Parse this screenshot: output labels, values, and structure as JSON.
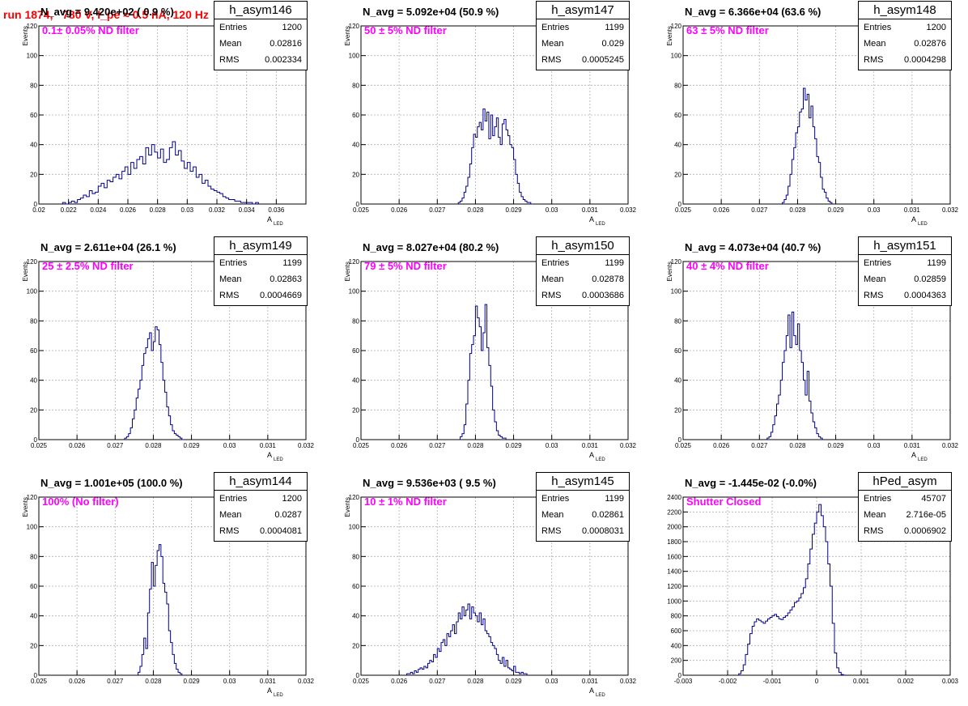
{
  "run_title": "run 1874,   780 V, I_pe ≈ 0.5 nA, 120 Hz",
  "colors": {
    "hist": "#00008b",
    "title": "#ff0000",
    "filter": "#ff00ff",
    "grid": "#b0b0b0"
  },
  "chart_data": [
    {
      "type": "bar",
      "histogram": "h_asym146",
      "n_avg": "N_avg = 9.420e+02 ( 0.9 %)",
      "filter": "0.1± 0.05% ND filter",
      "stats": {
        "Entries": "1200",
        "Mean": "0.02816",
        "RMS": "0.002334"
      },
      "xlabel": "A",
      "xlabel_sub": "LED",
      "ylabel": "Events",
      "xlim": [
        0.02,
        0.038
      ],
      "ylim": [
        0,
        120
      ],
      "xticks": [
        "0.02",
        "0.022",
        "0.024",
        "0.026",
        "0.028",
        "0.03",
        "0.032",
        "0.034",
        "0.036"
      ],
      "xtick_values": [
        0.02,
        0.022,
        0.024,
        0.026,
        0.028,
        0.03,
        0.032,
        0.034,
        0.036
      ],
      "yticks": [
        "0",
        "20",
        "40",
        "60",
        "80",
        "100",
        "120"
      ],
      "ytick_values": [
        0,
        20,
        40,
        60,
        80,
        100,
        120
      ],
      "bins": {
        "start": 0.0216,
        "width": 0.0002,
        "counts": [
          1,
          0,
          1,
          2,
          1,
          3,
          4,
          6,
          5,
          9,
          7,
          8,
          12,
          14,
          11,
          16,
          15,
          18,
          20,
          17,
          22,
          25,
          20,
          28,
          24,
          30,
          32,
          27,
          38,
          33,
          40,
          35,
          31,
          37,
          28,
          30,
          38,
          42,
          33,
          36,
          29,
          24,
          28,
          22,
          25,
          18,
          20,
          14,
          16,
          12,
          10,
          9,
          8,
          7,
          5,
          4,
          3,
          3,
          2,
          2,
          1,
          1,
          1,
          1,
          0,
          1
        ]
      },
      "grid": true,
      "legend": "top-right"
    },
    {
      "type": "bar",
      "histogram": "h_asym147",
      "n_avg": "N_avg = 5.092e+04 (50.9 %)",
      "filter": "50 ± 5% ND filter",
      "stats": {
        "Entries": "1199",
        "Mean": "0.029",
        "RMS": "0.0005245"
      },
      "xlabel": "A",
      "xlabel_sub": "LED",
      "ylabel": "Events",
      "xlim": [
        0.025,
        0.032
      ],
      "ylim": [
        0,
        120
      ],
      "xticks": [
        "0.025",
        "0.026",
        "0.027",
        "0.028",
        "0.029",
        "0.03",
        "0.031",
        "0.032"
      ],
      "xtick_values": [
        0.025,
        0.026,
        0.027,
        0.028,
        0.029,
        0.03,
        0.031,
        0.032
      ],
      "yticks": [
        "0",
        "20",
        "40",
        "60",
        "80",
        "100",
        "120"
      ],
      "ytick_values": [
        0,
        20,
        40,
        60,
        80,
        100,
        120
      ],
      "bins": {
        "start": 0.02755,
        "width": 5e-05,
        "counts": [
          1,
          2,
          4,
          8,
          12,
          18,
          27,
          38,
          47,
          45,
          52,
          55,
          50,
          64,
          56,
          62,
          44,
          60,
          46,
          52,
          58,
          45,
          40,
          54,
          57,
          50,
          46,
          40,
          38,
          30,
          20,
          14,
          8,
          5,
          3,
          2,
          1,
          1,
          0
        ]
      },
      "grid": true,
      "legend": "top-right"
    },
    {
      "type": "bar",
      "histogram": "h_asym148",
      "n_avg": "N_avg = 6.366e+04 (63.6 %)",
      "filter": "63 ± 5% ND filter",
      "stats": {
        "Entries": "1200",
        "Mean": "0.02876",
        "RMS": "0.0004298"
      },
      "xlabel": "A",
      "xlabel_sub": "LED",
      "ylabel": "Events",
      "xlim": [
        0.025,
        0.032
      ],
      "ylim": [
        0,
        120
      ],
      "xticks": [
        "0.025",
        "0.026",
        "0.027",
        "0.028",
        "0.029",
        "0.03",
        "0.031",
        "0.032"
      ],
      "xtick_values": [
        0.025,
        0.026,
        0.027,
        0.028,
        0.029,
        0.03,
        0.031,
        0.032
      ],
      "yticks": [
        "0",
        "20",
        "40",
        "60",
        "80",
        "100",
        "120"
      ],
      "ytick_values": [
        0,
        20,
        40,
        60,
        80,
        100,
        120
      ],
      "bins": {
        "start": 0.0276,
        "width": 5e-05,
        "counts": [
          1,
          3,
          6,
          12,
          20,
          30,
          38,
          48,
          52,
          62,
          64,
          78,
          70,
          74,
          58,
          66,
          52,
          44,
          32,
          28,
          18,
          10,
          8,
          4,
          2,
          1
        ]
      },
      "grid": true,
      "legend": "top-right"
    },
    {
      "type": "bar",
      "histogram": "h_asym149",
      "n_avg": "N_avg = 2.611e+04 (26.1 %)",
      "filter": "25 ± 2.5% ND filter",
      "stats": {
        "Entries": "1199",
        "Mean": "0.02863",
        "RMS": "0.0004669"
      },
      "xlabel": "A",
      "xlabel_sub": "LED",
      "ylabel": "Events",
      "xlim": [
        0.025,
        0.032
      ],
      "ylim": [
        0,
        120
      ],
      "xticks": [
        "0.025",
        "0.026",
        "0.027",
        "0.028",
        "0.029",
        "0.03",
        "0.031",
        "0.032"
      ],
      "xtick_values": [
        0.025,
        0.026,
        0.027,
        0.028,
        0.029,
        0.03,
        0.031,
        0.032
      ],
      "yticks": [
        "0",
        "20",
        "40",
        "60",
        "80",
        "100",
        "120"
      ],
      "ytick_values": [
        0,
        20,
        40,
        60,
        80,
        100,
        120
      ],
      "bins": {
        "start": 0.02725,
        "width": 5e-05,
        "counts": [
          1,
          2,
          4,
          8,
          14,
          20,
          28,
          34,
          40,
          50,
          58,
          62,
          68,
          72,
          60,
          66,
          76,
          74,
          64,
          52,
          40,
          32,
          22,
          16,
          10,
          6,
          4,
          3,
          2,
          1,
          0
        ]
      },
      "grid": true,
      "legend": "top-right"
    },
    {
      "type": "bar",
      "histogram": "h_asym150",
      "n_avg": "N_avg = 8.027e+04 (80.2 %)",
      "filter": "79 ± 5% ND filter",
      "stats": {
        "Entries": "1199",
        "Mean": "0.02878",
        "RMS": "0.0003686"
      },
      "xlabel": "A",
      "xlabel_sub": "LED",
      "ylabel": "Events",
      "xlim": [
        0.025,
        0.032
      ],
      "ylim": [
        0,
        120
      ],
      "xticks": [
        "0.025",
        "0.026",
        "0.027",
        "0.028",
        "0.029",
        "0.03",
        "0.031",
        "0.032"
      ],
      "xtick_values": [
        0.025,
        0.026,
        0.027,
        0.028,
        0.029,
        0.03,
        0.031,
        0.032
      ],
      "yticks": [
        "0",
        "20",
        "40",
        "60",
        "80",
        "100",
        "120"
      ],
      "ytick_values": [
        0,
        20,
        40,
        60,
        80,
        100,
        120
      ],
      "bins": {
        "start": 0.0276,
        "width": 5e-05,
        "counts": [
          2,
          4,
          10,
          24,
          40,
          58,
          64,
          70,
          90,
          82,
          76,
          60,
          72,
          91,
          62,
          50,
          36,
          20,
          12,
          6,
          3,
          2,
          1,
          1
        ]
      },
      "grid": true,
      "legend": "top-right"
    },
    {
      "type": "bar",
      "histogram": "h_asym151",
      "n_avg": "N_avg = 4.073e+04 (40.7 %)",
      "filter": "40 ± 4% ND filter",
      "stats": {
        "Entries": "1199",
        "Mean": "0.02859",
        "RMS": "0.0004363"
      },
      "xlabel": "A",
      "xlabel_sub": "LED",
      "ylabel": "Events",
      "xlim": [
        0.025,
        0.032
      ],
      "ylim": [
        0,
        120
      ],
      "xticks": [
        "0.025",
        "0.026",
        "0.027",
        "0.028",
        "0.029",
        "0.03",
        "0.031",
        "0.032"
      ],
      "xtick_values": [
        0.025,
        0.026,
        0.027,
        0.028,
        0.029,
        0.03,
        0.031,
        0.032
      ],
      "yticks": [
        "0",
        "20",
        "40",
        "60",
        "80",
        "100",
        "120"
      ],
      "ytick_values": [
        0,
        20,
        40,
        60,
        80,
        100,
        120
      ],
      "bins": {
        "start": 0.0272,
        "width": 5e-05,
        "counts": [
          1,
          2,
          5,
          10,
          16,
          24,
          30,
          40,
          52,
          60,
          70,
          84,
          62,
          86,
          70,
          64,
          78,
          60,
          52,
          40,
          30,
          46,
          26,
          18,
          12,
          8,
          4,
          2,
          1
        ]
      },
      "grid": true,
      "legend": "top-right"
    },
    {
      "type": "bar",
      "histogram": "h_asym144",
      "n_avg": "N_avg = 1.001e+05 (100.0 %)",
      "filter": "100% (No filter)",
      "stats": {
        "Entries": "1200",
        "Mean": "0.0287",
        "RMS": "0.0004081"
      },
      "xlabel": "A",
      "xlabel_sub": "LED",
      "ylabel": "Events",
      "xlim": [
        0.025,
        0.032
      ],
      "ylim": [
        0,
        120
      ],
      "xticks": [
        "0.025",
        "0.026",
        "0.027",
        "0.028",
        "0.029",
        "0.03",
        "0.031",
        "0.032"
      ],
      "xtick_values": [
        0.025,
        0.026,
        0.027,
        0.028,
        0.029,
        0.03,
        0.031,
        0.032
      ],
      "yticks": [
        "0",
        "20",
        "40",
        "60",
        "80",
        "100",
        "120"
      ],
      "ytick_values": [
        0,
        20,
        40,
        60,
        80,
        100,
        120
      ],
      "bins": {
        "start": 0.0276,
        "width": 5e-05,
        "counts": [
          2,
          6,
          14,
          25,
          18,
          42,
          58,
          76,
          60,
          74,
          84,
          88,
          80,
          62,
          56,
          48,
          30,
          22,
          14,
          8,
          4,
          2,
          1
        ]
      },
      "grid": true,
      "legend": "top-right"
    },
    {
      "type": "bar",
      "histogram": "h_asym145",
      "n_avg": "N_avg = 9.536e+03 ( 9.5 %)",
      "filter": "10 ± 1% ND filter",
      "stats": {
        "Entries": "1199",
        "Mean": "0.02861",
        "RMS": "0.0008031"
      },
      "xlabel": "A",
      "xlabel_sub": "LED",
      "ylabel": "Events",
      "xlim": [
        0.025,
        0.032
      ],
      "ylim": [
        0,
        120
      ],
      "xticks": [
        "0.025",
        "0.026",
        "0.027",
        "0.028",
        "0.029",
        "0.03",
        "0.031",
        "0.032"
      ],
      "xtick_values": [
        0.025,
        0.026,
        0.027,
        0.028,
        0.029,
        0.03,
        0.031,
        0.032
      ],
      "yticks": [
        "0",
        "20",
        "40",
        "60",
        "80",
        "100",
        "120"
      ],
      "ytick_values": [
        0,
        20,
        40,
        60,
        80,
        100,
        120
      ],
      "bins": {
        "start": 0.0262,
        "width": 5e-05,
        "counts": [
          1,
          1,
          2,
          1,
          3,
          2,
          4,
          5,
          4,
          6,
          5,
          8,
          10,
          9,
          14,
          12,
          18,
          16,
          22,
          24,
          20,
          28,
          26,
          30,
          34,
          28,
          36,
          42,
          38,
          46,
          40,
          44,
          48,
          38,
          46,
          42,
          40,
          36,
          42,
          34,
          38,
          30,
          28,
          26,
          22,
          20,
          18,
          14,
          10,
          8,
          12,
          6,
          10,
          5,
          4,
          3,
          6,
          2,
          2,
          1,
          2,
          1,
          1
        ]
      },
      "grid": true,
      "legend": "top-right"
    },
    {
      "type": "bar",
      "histogram": "hPed_asym",
      "n_avg": "N_avg = -1.445e-02 (-0.0%)",
      "filter": "Shutter Closed",
      "stats": {
        "Entries": "45707",
        "Mean": "2.716e-05",
        "RMS": "0.0006902"
      },
      "xlabel": "",
      "xlabel_sub": "",
      "ylabel": "",
      "xlim": [
        -0.003,
        0.003
      ],
      "ylim": [
        0,
        2400
      ],
      "xticks": [
        "-0.003",
        "-0.002",
        "-0.001",
        "0",
        "0.001",
        "0.002",
        "0.003"
      ],
      "xtick_values": [
        -0.003,
        -0.002,
        -0.001,
        0,
        0.001,
        0.002,
        0.003
      ],
      "yticks": [
        "0",
        "200",
        "400",
        "600",
        "800",
        "1000",
        "1200",
        "1400",
        "1600",
        "1800",
        "2000",
        "2200",
        "2400"
      ],
      "ytick_values": [
        0,
        200,
        400,
        600,
        800,
        1000,
        1200,
        1400,
        1600,
        1800,
        2000,
        2200,
        2400
      ],
      "bins": {
        "start": -0.00175,
        "width": 5e-05,
        "counts": [
          20,
          60,
          140,
          280,
          420,
          560,
          660,
          720,
          760,
          740,
          720,
          700,
          730,
          760,
          780,
          800,
          820,
          790,
          760,
          750,
          780,
          800,
          840,
          880,
          920,
          980,
          1000,
          1040,
          1100,
          1180,
          1300,
          1500,
          1700,
          1900,
          2050,
          2200,
          2300,
          2150,
          2000,
          1800,
          1500,
          1200,
          700,
          300,
          100,
          40,
          10,
          2
        ]
      },
      "grid": true,
      "legend": "top-right"
    }
  ]
}
